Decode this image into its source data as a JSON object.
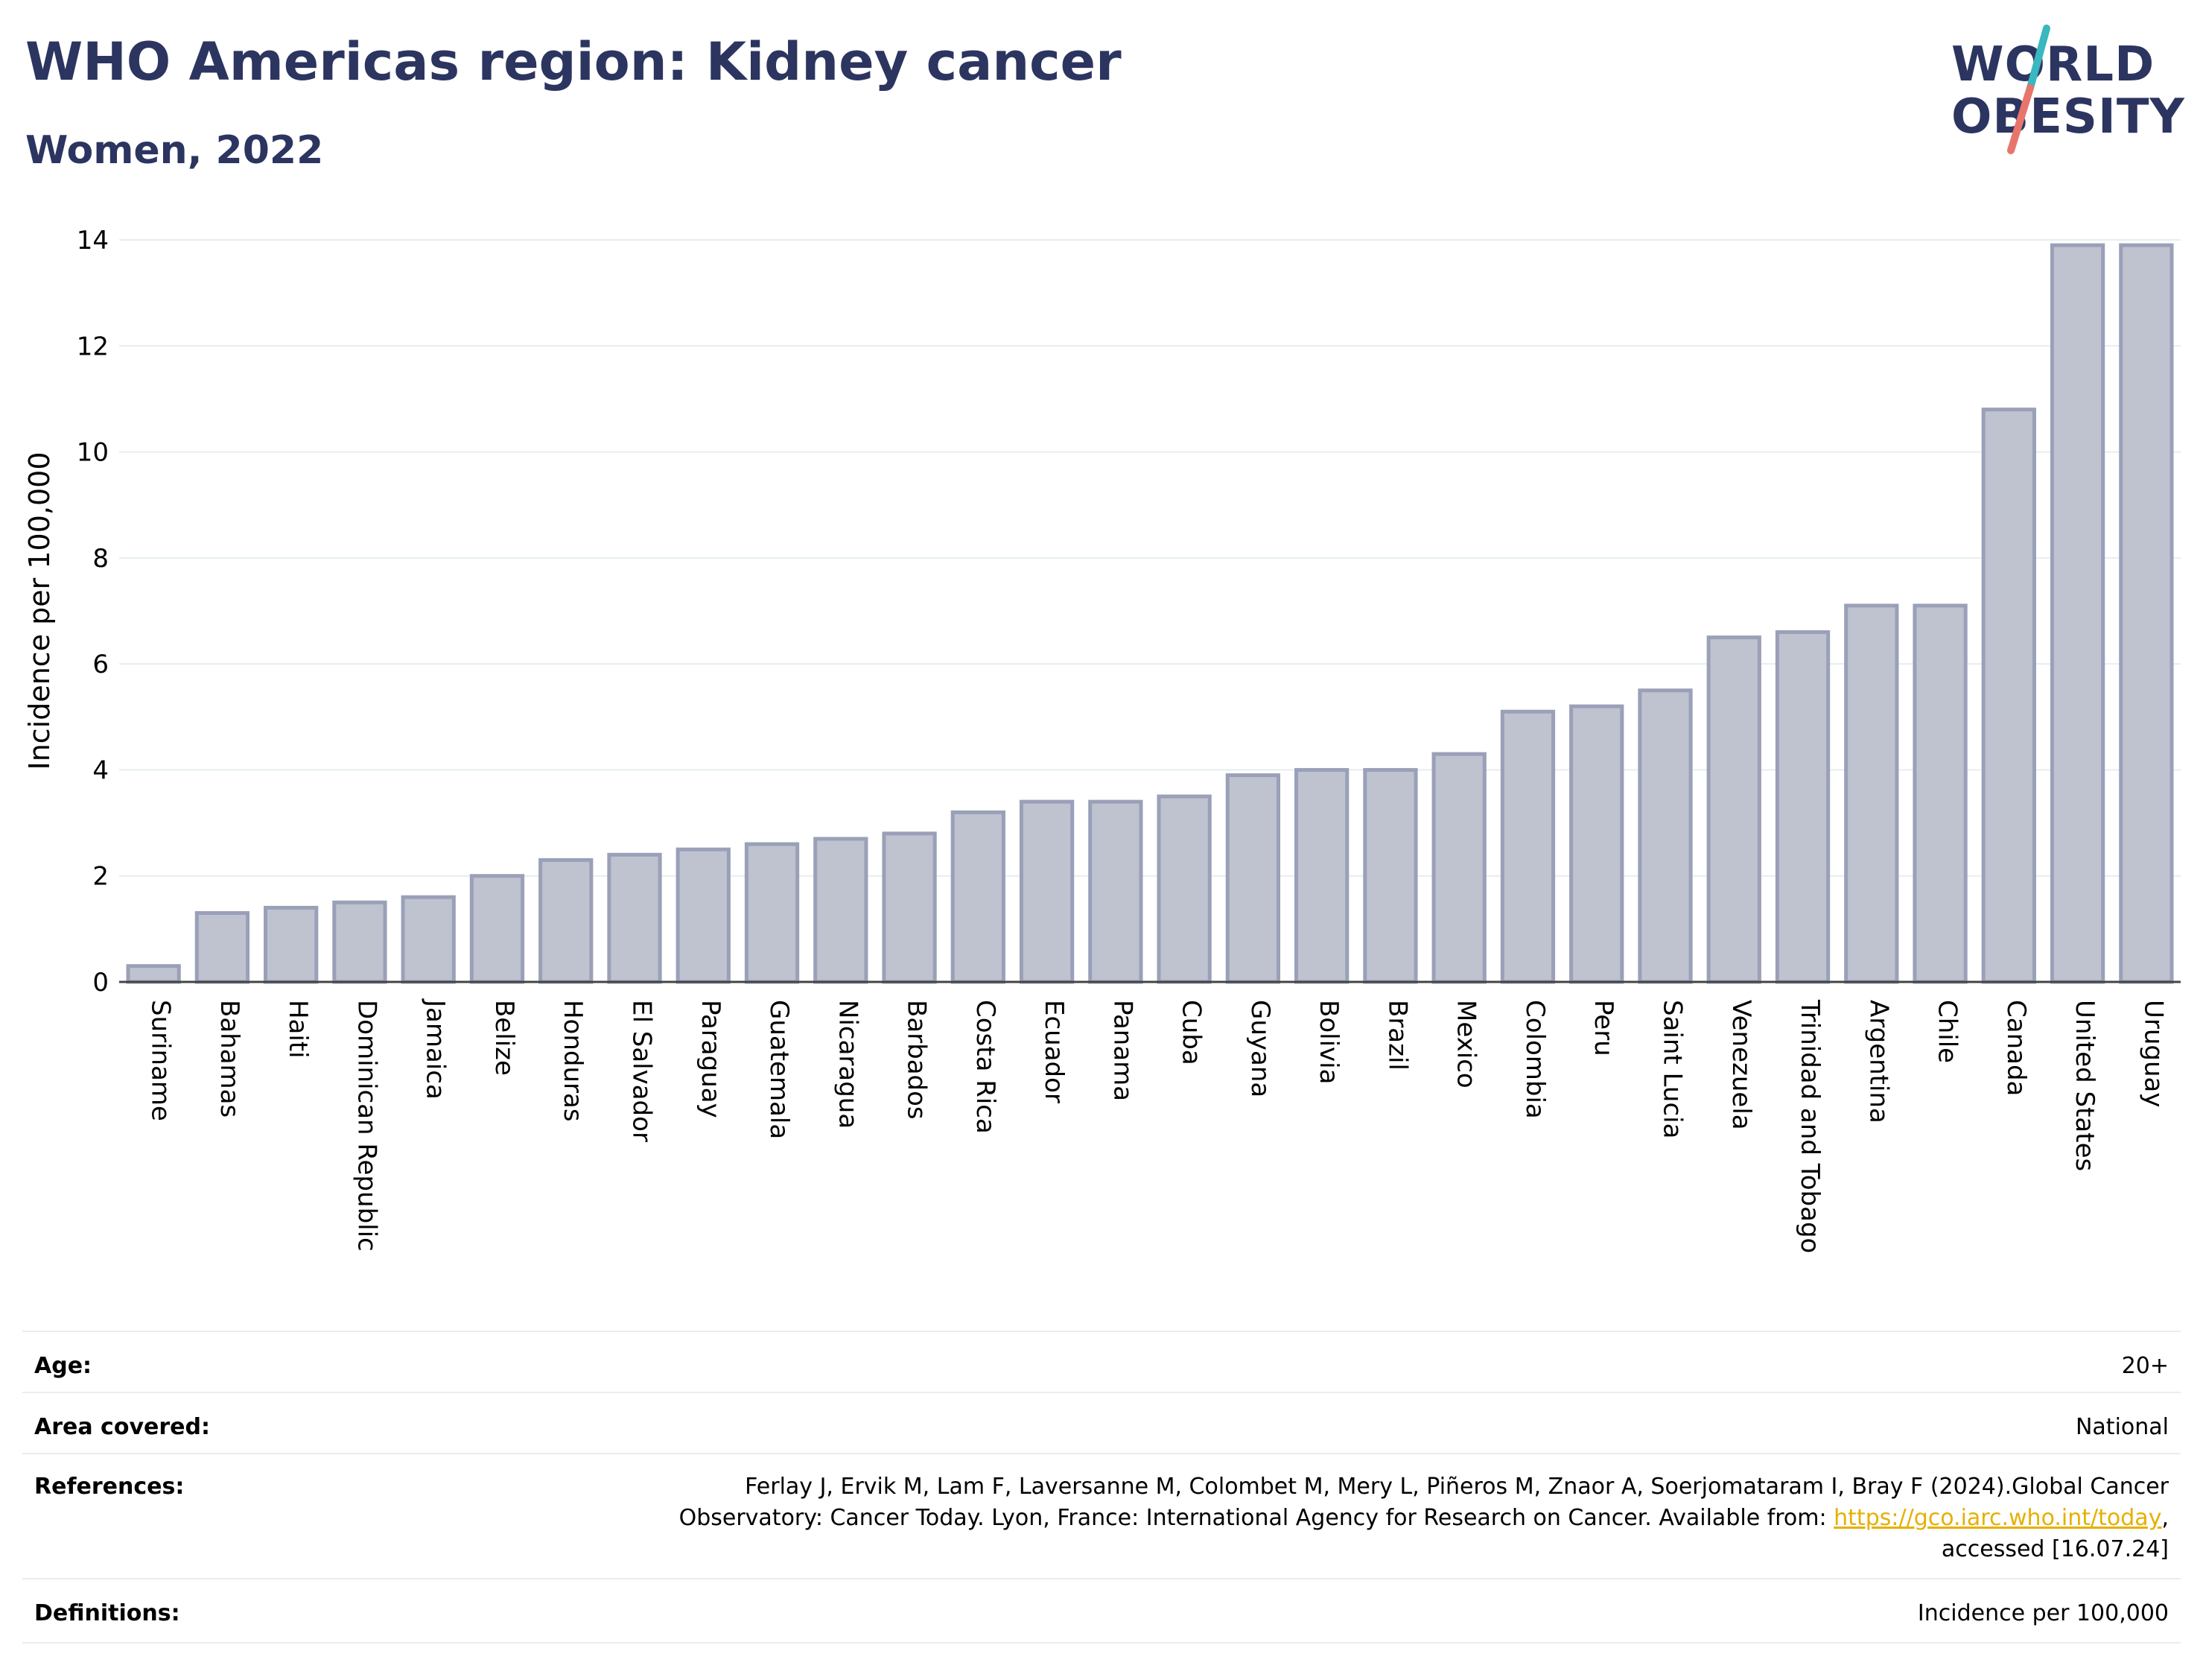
{
  "header": {
    "title": "WHO Americas region: Kidney cancer",
    "subtitle": "Women, 2022"
  },
  "logo": {
    "line1": "WORLD",
    "line2": "OBESITY",
    "colors": {
      "text": "#2c3560",
      "stroke_top": "#3ab7bf",
      "stroke_bottom": "#e8756b"
    }
  },
  "chart_data": {
    "type": "bar",
    "ylabel": "Incidence per 100,000",
    "ylim": [
      0,
      14
    ],
    "yticks": [
      0,
      2,
      4,
      6,
      8,
      10,
      12,
      14
    ],
    "grid": true,
    "bar_color": "#bfc2cf",
    "bar_edge_color": "#9aa0b8",
    "categories": [
      "Suriname",
      "Bahamas",
      "Haiti",
      "Dominican Republic",
      "Jamaica",
      "Belize",
      "Honduras",
      "El Salvador",
      "Paraguay",
      "Guatemala",
      "Nicaragua",
      "Barbados",
      "Costa Rica",
      "Ecuador",
      "Panama",
      "Cuba",
      "Guyana",
      "Bolivia",
      "Brazil",
      "Mexico",
      "Colombia",
      "Peru",
      "Saint Lucia",
      "Venezuela",
      "Trinidad and Tobago",
      "Argentina",
      "Chile",
      "Canada",
      "United States",
      "Uruguay"
    ],
    "values": [
      0.3,
      1.3,
      1.4,
      1.5,
      1.6,
      2.0,
      2.3,
      2.4,
      2.5,
      2.6,
      2.7,
      2.8,
      3.2,
      3.4,
      3.4,
      3.5,
      3.9,
      4.0,
      4.0,
      4.3,
      5.1,
      5.2,
      5.5,
      6.5,
      6.6,
      7.1,
      7.1,
      10.8,
      13.9,
      13.9
    ]
  },
  "meta": {
    "age": {
      "label": "Age:",
      "value": "20+"
    },
    "area": {
      "label": "Area covered:",
      "value": "National"
    },
    "references": {
      "label": "References:",
      "line1": "Ferlay J, Ervik M, Lam F, Laversanne M, Colombet M, Mery L, Piñeros M, Znaor A, Soerjomataram I, Bray F (2024).Global Cancer",
      "line2_prefix": "Observatory: Cancer Today. Lyon, France: International Agency for Research on Cancer. Available from: ",
      "link": "https://gco.iarc.who.int/today",
      "line2_suffix": ",",
      "line3": "accessed [16.07.24]"
    },
    "definitions": {
      "label": "Definitions:",
      "value": "Incidence per 100,000"
    }
  }
}
